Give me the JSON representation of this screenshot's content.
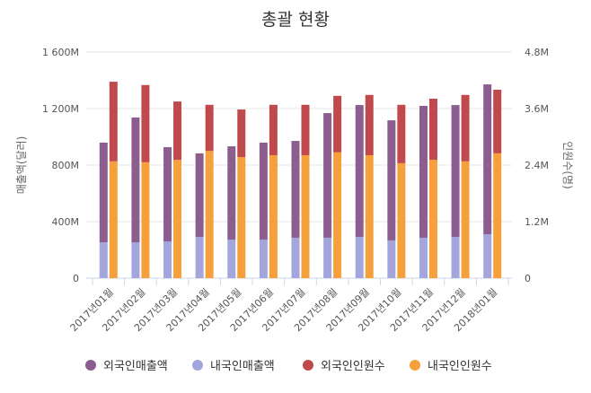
{
  "chart_data": {
    "type": "bar",
    "stacked": true,
    "title": "총괄 현황",
    "ylabel_left": "매출액(달러)",
    "ylabel_right": "인원수(명)",
    "ylim_left": [
      0,
      1600000000
    ],
    "ylim_right": [
      0,
      4800000
    ],
    "yticks_left": [
      "0",
      "400M",
      "800M",
      "1 200M",
      "1 600M"
    ],
    "yticks_right": [
      "0",
      "1.2M",
      "2.4M",
      "3.6M",
      "4.8M"
    ],
    "grid": true,
    "legend_position": "bottom",
    "categories": [
      "2017년01월",
      "2017년02월",
      "2017년03월",
      "2017년04월",
      "2017년05월",
      "2017년06월",
      "2017년07월",
      "2017년08월",
      "2017년09월",
      "2017년10월",
      "2017년11월",
      "2017년12월",
      "2018년01월"
    ],
    "series": [
      {
        "name": "외국인매출액",
        "axis": "left",
        "stack": "sales",
        "color": "#8b5e8f",
        "values": [
          705000000,
          883000000,
          667000000,
          591000000,
          660000000,
          686000000,
          685000000,
          882000000,
          933000000,
          850000000,
          933000000,
          933000000,
          1060000000
        ]
      },
      {
        "name": "내국인매출액",
        "axis": "left",
        "stack": "sales",
        "color": "#a3a6dc",
        "values": [
          254000000,
          254000000,
          260000000,
          292000000,
          273000000,
          273000000,
          286000000,
          286000000,
          292000000,
          267000000,
          286000000,
          292000000,
          311000000
        ]
      },
      {
        "name": "외국인인원수",
        "axis": "right",
        "stack": "people",
        "color": "#c0494d",
        "values": [
          1690000,
          1640000,
          1240000,
          980000,
          1010000,
          1070000,
          1070000,
          1200000,
          1280000,
          1240000,
          1300000,
          1410000,
          1350000
        ]
      },
      {
        "name": "내국인인원수",
        "axis": "right",
        "stack": "people",
        "color": "#f5a03a",
        "values": [
          2480000,
          2460000,
          2510000,
          2700000,
          2570000,
          2610000,
          2610000,
          2670000,
          2610000,
          2440000,
          2510000,
          2480000,
          2650000
        ]
      }
    ]
  }
}
